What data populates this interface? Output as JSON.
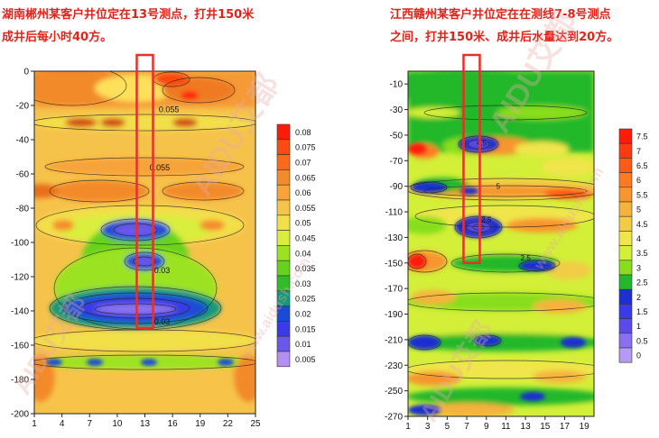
{
  "captions": {
    "left_line1": "湖南郴州某客户井位定在13号测点，打井150米",
    "left_line2": "成井后每小时40方。",
    "right_line1": "江西赣州某客户井位定在在测线7-8号测点",
    "right_line2": "之间，打井150米、成井后水量达到20方。"
  },
  "watermark": {
    "text": "AIDU艾都",
    "url": "www.aidush.com",
    "brand_color": "#e7a9a9"
  },
  "colors": {
    "caption": "#e0231b",
    "highlight_box": "#e8302a"
  },
  "chart_data": [
    {
      "type": "heatmap",
      "x": {
        "min": 1,
        "max": 25,
        "ticks": [
          1,
          4,
          7,
          10,
          13,
          16,
          19,
          22,
          25
        ]
      },
      "y": {
        "min": -200,
        "max": 0,
        "ticks": [
          0,
          -20,
          -40,
          -60,
          -80,
          -100,
          -120,
          -140,
          -160,
          -180,
          -200
        ]
      },
      "legend": {
        "values": [
          "0.08",
          "0.075",
          "0.07",
          "0.065",
          "0.06",
          "0.055",
          "0.05",
          "0.045",
          "0.04",
          "0.035",
          "0.03",
          "0.025",
          "0.02",
          "0.015",
          "0.01",
          "0.005"
        ],
        "colors": [
          "#ff1a0a",
          "#ff4a10",
          "#ff6a1a",
          "#f58a2a",
          "#f9a33a",
          "#f7c44a",
          "#f2e04a",
          "#d9ee3c",
          "#9be320",
          "#67d21c",
          "#2fbe2a",
          "#149a78",
          "#1a4bd6",
          "#3a3ae6",
          "#6a58ea",
          "#b48ef2"
        ]
      },
      "contour_labels": [
        "0.055",
        "0.055",
        "0.03",
        "0.03"
      ],
      "well_position": {
        "x_station": 13,
        "depth_m": 150
      }
    },
    {
      "type": "heatmap",
      "x": {
        "min": 1,
        "max": 20,
        "ticks": [
          1,
          3,
          5,
          7,
          9,
          11,
          13,
          15,
          17,
          19
        ]
      },
      "y": {
        "min": -270,
        "max": 0,
        "ticks": [
          -10,
          -30,
          -50,
          -70,
          -90,
          -110,
          -130,
          -150,
          -170,
          -190,
          -210,
          -230,
          -250,
          -270
        ]
      },
      "legend": {
        "values": [
          "7.5",
          "7",
          "6.5",
          "6",
          "5.5",
          "5",
          "4.5",
          "4",
          "3.5",
          "3",
          "2.5",
          "2",
          "1.5",
          "1",
          "0.5",
          "0"
        ],
        "colors": [
          "#ff1a0a",
          "#ff3a12",
          "#ff5a18",
          "#ff7a22",
          "#f7952e",
          "#f6b23c",
          "#f2cc44",
          "#f0e54c",
          "#d3ef38",
          "#88de1c",
          "#22b82c",
          "#1d2fd0",
          "#3a3be8",
          "#5a4be8",
          "#8a70ee",
          "#b49af5"
        ]
      },
      "contour_labels": [
        "4.5",
        "5",
        "2.5",
        "2.5"
      ],
      "well_position": {
        "x_station": 7.5,
        "depth_m": 150
      }
    }
  ]
}
